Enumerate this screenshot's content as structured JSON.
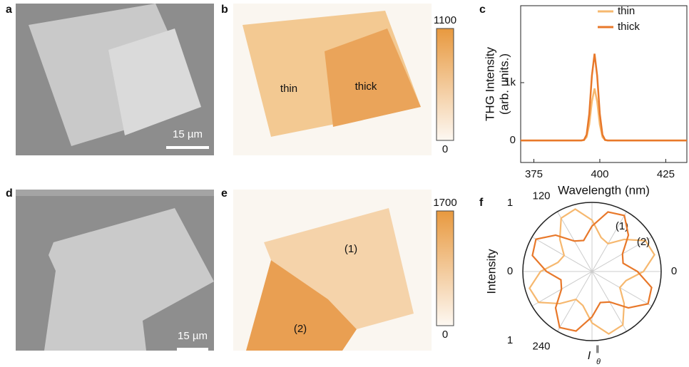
{
  "panel_labels": [
    "a",
    "b",
    "c",
    "d",
    "e",
    "f"
  ],
  "images": {
    "a": {
      "scale_bar": "15 µm"
    },
    "b": {
      "labels": [
        "thin",
        "thick"
      ],
      "colorbar": {
        "ticks": [
          0,
          1100
        ],
        "colors": [
          "#fdf8f2",
          "#e8993f"
        ]
      }
    },
    "d": {
      "scale_bar": "15 µm"
    },
    "e": {
      "labels": [
        "(1)",
        "(2)"
      ],
      "colorbar": {
        "ticks": [
          0,
          1700
        ],
        "colors": [
          "#fdf8f2",
          "#e8993f"
        ]
      }
    }
  },
  "chart_data": [
    {
      "type": "line",
      "ylabel": [
        "THG Intensity",
        "(arb. units.)"
      ],
      "xlabel": "Wavelength (nm)",
      "x": [
        370,
        380,
        390,
        393,
        394,
        395,
        396,
        397,
        398,
        399,
        400,
        401,
        402,
        403,
        406,
        415,
        425,
        433
      ],
      "series": [
        {
          "name": "thin",
          "color": "#f6b86f",
          "values": [
            0,
            0,
            0,
            0,
            6,
            60,
            276,
            672,
            900,
            672,
            276,
            60,
            6,
            0,
            0,
            0,
            0,
            0
          ]
        },
        {
          "name": "thick",
          "color": "#e8782a",
          "values": [
            0,
            0,
            0,
            0,
            10,
            100,
            460,
            1120,
            1500,
            1120,
            460,
            100,
            10,
            0,
            0,
            0,
            0,
            0
          ]
        }
      ],
      "xlim": [
        370,
        433
      ],
      "ylim": [
        -380,
        2330
      ],
      "xticks": [
        375,
        400,
        425
      ],
      "yticks": [
        0,
        {
          "value": 1000,
          "label": "1k"
        }
      ],
      "legend": "upper right"
    },
    {
      "type": "polar",
      "ylabel": "Intensity",
      "side_labels": [
        "1",
        "0",
        "1"
      ],
      "theta_label": {
        "main": "I",
        "sub": "θ",
        "sup": "∥"
      },
      "theta": [
        0,
        15,
        30,
        45,
        60,
        75,
        90,
        105,
        120,
        135,
        150,
        165,
        180,
        195,
        210,
        225,
        240,
        255,
        270,
        285,
        300,
        315,
        330,
        345
      ],
      "thetaticks": [
        0,
        120,
        240
      ],
      "rlim": [
        0,
        1
      ],
      "series": [
        {
          "name": "(1)",
          "color": "#f6b86f",
          "values": [
            0.744,
            0.935,
            0.892,
            0.657,
            0.465,
            0.509,
            0.744,
            0.935,
            0.892,
            0.657,
            0.465,
            0.509,
            0.744,
            0.935,
            0.892,
            0.657,
            0.465,
            0.509,
            0.744,
            0.935,
            0.892,
            0.657,
            0.465,
            0.509
          ]
        },
        {
          "name": "(2)",
          "color": "#e8782a",
          "values": [
            0.657,
            0.465,
            0.509,
            0.744,
            0.935,
            0.892,
            0.657,
            0.465,
            0.509,
            0.744,
            0.935,
            0.892,
            0.657,
            0.465,
            0.509,
            0.744,
            0.935,
            0.892,
            0.657,
            0.465,
            0.509,
            0.744,
            0.935,
            0.892
          ]
        }
      ]
    }
  ]
}
